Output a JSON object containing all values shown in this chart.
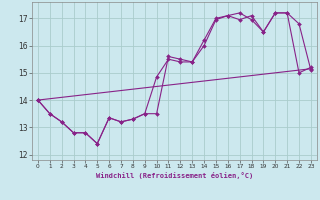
{
  "xlabel": "Windchill (Refroidissement éolien,°C)",
  "background_color": "#cce8ee",
  "line_color": "#882288",
  "grid_color": "#aacccc",
  "xlim": [
    -0.5,
    23.5
  ],
  "ylim": [
    11.8,
    17.6
  ],
  "xticks": [
    0,
    1,
    2,
    3,
    4,
    5,
    6,
    7,
    8,
    9,
    10,
    11,
    12,
    13,
    14,
    15,
    16,
    17,
    18,
    19,
    20,
    21,
    22,
    23
  ],
  "yticks": [
    12,
    13,
    14,
    15,
    16,
    17
  ],
  "line1_x": [
    0,
    1,
    2,
    3,
    4,
    5,
    6,
    7,
    8,
    9,
    10,
    11,
    12,
    13,
    14,
    15,
    16,
    17,
    18,
    19,
    20,
    21,
    22,
    23
  ],
  "line1_y": [
    14.0,
    13.5,
    13.2,
    12.8,
    12.8,
    12.4,
    13.35,
    13.2,
    13.3,
    13.5,
    13.5,
    15.6,
    15.5,
    15.4,
    16.0,
    16.95,
    17.1,
    17.2,
    16.95,
    16.5,
    17.2,
    17.2,
    16.8,
    15.1
  ],
  "line2_x": [
    0,
    1,
    2,
    3,
    4,
    5,
    6,
    7,
    8,
    9,
    10,
    11,
    12,
    13,
    14,
    15,
    16,
    17,
    18,
    19,
    20,
    21,
    22,
    23
  ],
  "line2_y": [
    14.0,
    13.5,
    13.2,
    12.8,
    12.8,
    12.4,
    13.35,
    13.2,
    13.3,
    13.5,
    14.85,
    15.5,
    15.4,
    15.4,
    16.2,
    17.0,
    17.1,
    16.95,
    17.1,
    16.5,
    17.2,
    17.2,
    15.0,
    15.2
  ],
  "line3_x": [
    0,
    23
  ],
  "line3_y": [
    14.0,
    15.15
  ]
}
